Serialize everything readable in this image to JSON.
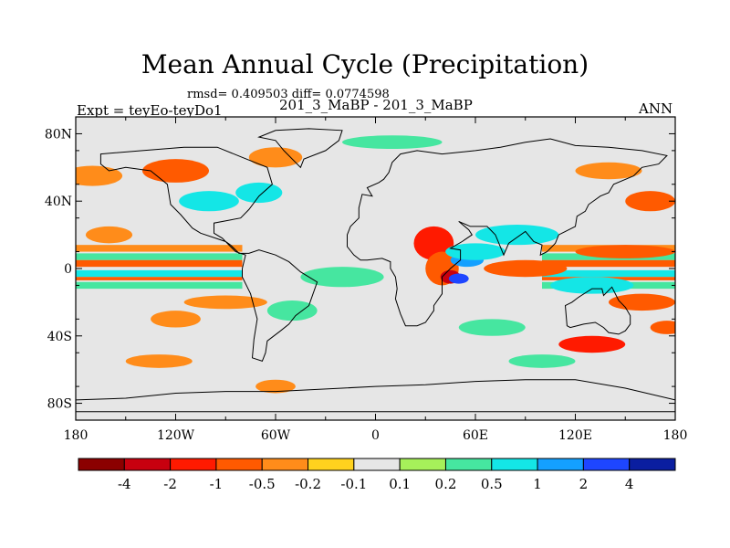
{
  "chart_data": {
    "type": "heatmap",
    "title": "Mean Annual Cycle (Precipitation)",
    "stats_line": "rmsd= 0.409503 diff= 0.0774598",
    "left_label": "Expt = teyEo-teyDo1",
    "center_label": "201_3_MaBP - 201_3_MaBP",
    "right_label": "ANN",
    "x_ticks": [
      {
        "value": -180,
        "label": "180"
      },
      {
        "value": -120,
        "label": "120W"
      },
      {
        "value": -60,
        "label": "60W"
      },
      {
        "value": 0,
        "label": "0"
      },
      {
        "value": 60,
        "label": "60E"
      },
      {
        "value": 120,
        "label": "120E"
      },
      {
        "value": 180,
        "label": "180"
      }
    ],
    "y_ticks": [
      {
        "value": 80,
        "label": "80N"
      },
      {
        "value": 40,
        "label": "40N"
      },
      {
        "value": 0,
        "label": "0"
      },
      {
        "value": -40,
        "label": "40S"
      },
      {
        "value": -80,
        "label": "80S"
      }
    ],
    "xlim": [
      -180,
      180
    ],
    "ylim": [
      -90,
      90
    ],
    "colorbar": {
      "colors": [
        "#8b0000",
        "#c8000f",
        "#ff1a00",
        "#ff5a00",
        "#ff8c1a",
        "#ffd21e",
        "#e6e6e6",
        "#a6f05a",
        "#46e6a0",
        "#14e6e6",
        "#14a0ff",
        "#1e46ff",
        "#0a1ea0"
      ],
      "labels": [
        "-4",
        "-2",
        "-1",
        "-0.5",
        "-0.2",
        "-0.1",
        "0.1",
        "0.2",
        "0.5",
        "1",
        "2",
        "4"
      ]
    },
    "regions": [
      {
        "lon": -170,
        "lat": 55,
        "rx": 18,
        "ry": 6,
        "level": "-0.2"
      },
      {
        "lon": -160,
        "lat": 20,
        "rx": 14,
        "ry": 5,
        "level": "-0.2"
      },
      {
        "lon": -120,
        "lat": 58,
        "rx": 20,
        "ry": 7,
        "level": "-0.5"
      },
      {
        "lon": -100,
        "lat": 40,
        "rx": 18,
        "ry": 6,
        "level": "0.5"
      },
      {
        "lon": -60,
        "lat": 66,
        "rx": 16,
        "ry": 6,
        "level": "-0.2"
      },
      {
        "lon": -70,
        "lat": 45,
        "rx": 14,
        "ry": 6,
        "level": "0.5"
      },
      {
        "lon": 35,
        "lat": 15,
        "rx": 12,
        "ry": 10,
        "level": "-1"
      },
      {
        "lon": 40,
        "lat": 0,
        "rx": 10,
        "ry": 10,
        "level": "-0.5"
      },
      {
        "lon": 45,
        "lat": -5,
        "rx": 6,
        "ry": 4,
        "level": "-2"
      },
      {
        "lon": 55,
        "lat": 5,
        "rx": 10,
        "ry": 4,
        "level": "1"
      },
      {
        "lon": 60,
        "lat": 10,
        "rx": 18,
        "ry": 5,
        "level": "0.5"
      },
      {
        "lon": 50,
        "lat": -6,
        "rx": 6,
        "ry": 3,
        "level": "2"
      },
      {
        "lon": 90,
        "lat": 0,
        "rx": 25,
        "ry": 5,
        "level": "-0.5"
      },
      {
        "lon": 85,
        "lat": 20,
        "rx": 25,
        "ry": 6,
        "level": "0.5"
      },
      {
        "lon": 165,
        "lat": 40,
        "rx": 15,
        "ry": 6,
        "level": "-0.5"
      },
      {
        "lon": 140,
        "lat": 58,
        "rx": 20,
        "ry": 5,
        "level": "-0.2"
      },
      {
        "lon": 150,
        "lat": 10,
        "rx": 30,
        "ry": 4,
        "level": "-0.5"
      },
      {
        "lon": 130,
        "lat": -45,
        "rx": 20,
        "ry": 5,
        "level": "-1"
      },
      {
        "lon": 130,
        "lat": -10,
        "rx": 25,
        "ry": 5,
        "level": "0.5"
      },
      {
        "lon": 160,
        "lat": -20,
        "rx": 20,
        "ry": 5,
        "level": "-0.5"
      },
      {
        "lon": -120,
        "lat": -30,
        "rx": 15,
        "ry": 5,
        "level": "-0.2"
      },
      {
        "lon": -50,
        "lat": -25,
        "rx": 15,
        "ry": 6,
        "level": "0.2"
      },
      {
        "lon": -20,
        "lat": -5,
        "rx": 25,
        "ry": 6,
        "level": "0.2"
      },
      {
        "lon": -60,
        "lat": -70,
        "rx": 12,
        "ry": 4,
        "level": "-0.2"
      },
      {
        "lon": 70,
        "lat": -35,
        "rx": 20,
        "ry": 5,
        "level": "0.2"
      },
      {
        "lon": -130,
        "lat": -55,
        "rx": 20,
        "ry": 4,
        "level": "-0.2"
      },
      {
        "lon": 100,
        "lat": -55,
        "rx": 20,
        "ry": 4,
        "level": "0.2"
      },
      {
        "lon": -90,
        "lat": -20,
        "rx": 25,
        "ry": 4,
        "level": "-0.2"
      },
      {
        "lon": 10,
        "lat": 75,
        "rx": 30,
        "ry": 4,
        "level": "0.2"
      },
      {
        "lon": 175,
        "lat": -35,
        "rx": 10,
        "ry": 4,
        "level": "-0.5"
      }
    ],
    "bands": [
      {
        "lat": 12,
        "halfwidth": 2,
        "level": "-0.2"
      },
      {
        "lat": 7,
        "halfwidth": 2,
        "level": "0.2"
      },
      {
        "lat": 3,
        "halfwidth": 2,
        "level": "-0.5"
      },
      {
        "lat": -3,
        "halfwidth": 2,
        "level": "0.5"
      },
      {
        "lat": -6,
        "halfwidth": 1,
        "level": "-0.5"
      },
      {
        "lat": -10,
        "halfwidth": 2,
        "level": "0.2"
      }
    ],
    "band_spans": [
      {
        "from": -180,
        "to": -80
      },
      {
        "from": 100,
        "to": 180
      }
    ],
    "coastlines": [
      [
        [
          -165,
          68
        ],
        [
          -140,
          70
        ],
        [
          -115,
          72
        ],
        [
          -95,
          72
        ],
        [
          -80,
          66
        ],
        [
          -65,
          60
        ],
        [
          -62,
          50
        ],
        [
          -70,
          43
        ],
        [
          -76,
          35
        ],
        [
          -81,
          30
        ],
        [
          -97,
          27
        ],
        [
          -97,
          21
        ],
        [
          -92,
          18
        ],
        [
          -84,
          10
        ],
        [
          -78,
          8
        ],
        [
          -80,
          0
        ],
        [
          -80,
          -5
        ],
        [
          -75,
          -15
        ],
        [
          -71,
          -30
        ],
        [
          -73,
          -42
        ],
        [
          -74,
          -53
        ],
        [
          -68,
          -55
        ],
        [
          -66,
          -50
        ],
        [
          -65,
          -43
        ],
        [
          -57,
          -37
        ],
        [
          -52,
          -33
        ],
        [
          -48,
          -28
        ],
        [
          -40,
          -22
        ],
        [
          -35,
          -8
        ],
        [
          -45,
          -2
        ],
        [
          -52,
          4
        ],
        [
          -60,
          8
        ],
        [
          -70,
          11
        ],
        [
          -76,
          9
        ],
        [
          -82,
          9
        ],
        [
          -87,
          14
        ],
        [
          -90,
          16
        ],
        [
          -105,
          21
        ],
        [
          -110,
          24
        ],
        [
          -117,
          32
        ],
        [
          -123,
          38
        ],
        [
          -124,
          44
        ],
        [
          -125,
          50
        ],
        [
          -135,
          58
        ],
        [
          -150,
          60
        ],
        [
          -160,
          58
        ],
        [
          -165,
          62
        ],
        [
          -165,
          68
        ]
      ],
      [
        [
          -10,
          36
        ],
        [
          -8,
          44
        ],
        [
          -2,
          43
        ],
        [
          -5,
          48
        ],
        [
          2,
          51
        ],
        [
          5,
          53
        ],
        [
          8,
          57
        ],
        [
          10,
          63
        ],
        [
          15,
          68
        ],
        [
          25,
          70
        ],
        [
          40,
          68
        ],
        [
          60,
          70
        ],
        [
          75,
          72
        ],
        [
          90,
          75
        ],
        [
          105,
          77
        ],
        [
          120,
          73
        ],
        [
          140,
          72
        ],
        [
          160,
          70
        ],
        [
          175,
          67
        ],
        [
          170,
          62
        ],
        [
          160,
          60
        ],
        [
          155,
          55
        ],
        [
          143,
          50
        ],
        [
          140,
          45
        ],
        [
          135,
          43
        ],
        [
          128,
          38
        ],
        [
          126,
          34
        ],
        [
          121,
          31
        ],
        [
          120,
          25
        ],
        [
          110,
          20
        ],
        [
          108,
          15
        ],
        [
          103,
          10
        ],
        [
          99,
          8
        ],
        [
          100,
          14
        ],
        [
          95,
          16
        ],
        [
          90,
          22
        ],
        [
          80,
          15
        ],
        [
          77,
          8
        ],
        [
          72,
          20
        ],
        [
          67,
          25
        ],
        [
          57,
          25
        ],
        [
          50,
          28
        ],
        [
          56,
          23
        ],
        [
          58,
          20
        ],
        [
          52,
          16
        ],
        [
          45,
          12
        ],
        [
          51,
          11
        ],
        [
          51,
          5
        ],
        [
          45,
          0
        ],
        [
          40,
          -5
        ],
        [
          40,
          -15
        ],
        [
          35,
          -22
        ],
        [
          35,
          -25
        ],
        [
          30,
          -32
        ],
        [
          25,
          -34
        ],
        [
          18,
          -34
        ],
        [
          15,
          -27
        ],
        [
          12,
          -18
        ],
        [
          13,
          -12
        ],
        [
          12,
          -5
        ],
        [
          9,
          0
        ],
        [
          9,
          4
        ],
        [
          4,
          6
        ],
        [
          -5,
          5
        ],
        [
          -9,
          5
        ],
        [
          -13,
          8
        ],
        [
          -17,
          13
        ],
        [
          -17,
          20
        ],
        [
          -15,
          25
        ],
        [
          -10,
          30
        ],
        [
          -10,
          36
        ]
      ],
      [
        [
          114,
          -22
        ],
        [
          118,
          -20
        ],
        [
          122,
          -17
        ],
        [
          130,
          -12
        ],
        [
          136,
          -12
        ],
        [
          137,
          -16
        ],
        [
          142,
          -11
        ],
        [
          146,
          -19
        ],
        [
          150,
          -23
        ],
        [
          153,
          -28
        ],
        [
          153,
          -33
        ],
        [
          150,
          -37
        ],
        [
          146,
          -39
        ],
        [
          140,
          -38
        ],
        [
          137,
          -35
        ],
        [
          132,
          -32
        ],
        [
          125,
          -33
        ],
        [
          117,
          -35
        ],
        [
          115,
          -34
        ],
        [
          114,
          -22
        ]
      ],
      [
        [
          -20,
          -71
        ],
        [
          -60,
          -73
        ],
        [
          -90,
          -73
        ],
        [
          -120,
          -74
        ],
        [
          -150,
          -77
        ],
        [
          -180,
          -78
        ],
        [
          -180,
          -85
        ],
        [
          180,
          -85
        ],
        [
          180,
          -78
        ],
        [
          150,
          -71
        ],
        [
          120,
          -66
        ],
        [
          90,
          -66
        ],
        [
          60,
          -67
        ],
        [
          30,
          -69
        ],
        [
          0,
          -70
        ],
        [
          -20,
          -71
        ]
      ],
      [
        [
          -45,
          60
        ],
        [
          -43,
          65
        ],
        [
          -30,
          70
        ],
        [
          -22,
          76
        ],
        [
          -20,
          82
        ],
        [
          -40,
          83
        ],
        [
          -60,
          82
        ],
        [
          -70,
          78
        ],
        [
          -60,
          76
        ],
        [
          -55,
          70
        ],
        [
          -45,
          60
        ]
      ]
    ]
  }
}
